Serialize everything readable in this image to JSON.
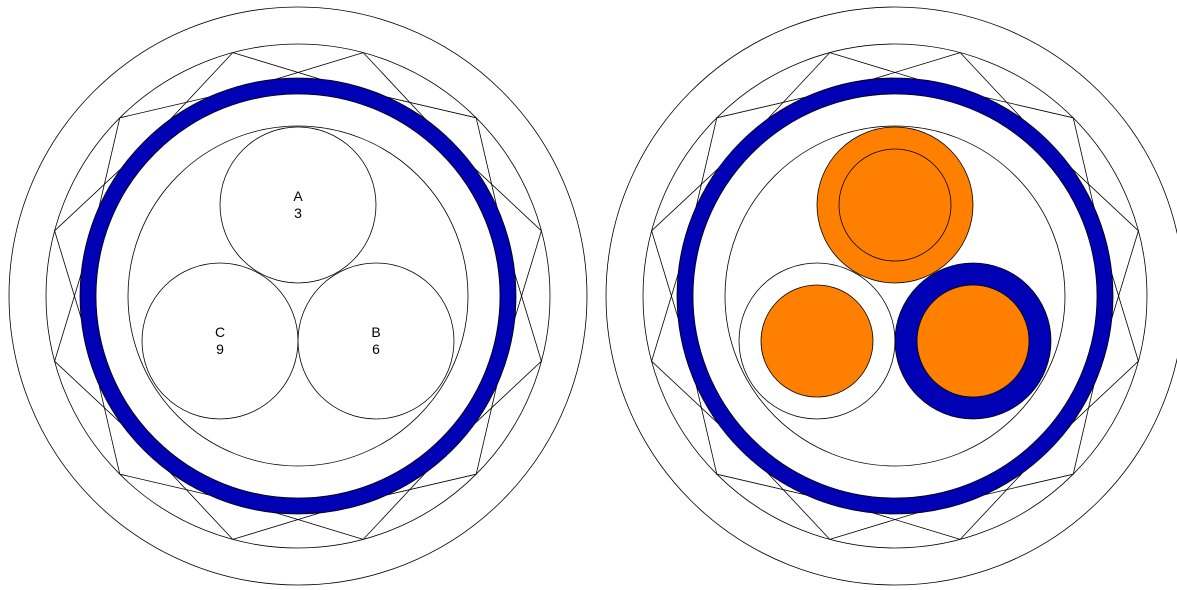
{
  "colors": {
    "background": "#ffffff",
    "outline": "#000000",
    "sheath": "#0000b4",
    "conductor": "#ff8000"
  },
  "left_diagram": {
    "cores": [
      {
        "id": "a",
        "name": "A",
        "number": "3"
      },
      {
        "id": "b",
        "name": "B",
        "number": "6"
      },
      {
        "id": "c",
        "name": "C",
        "number": "9"
      }
    ]
  },
  "right_diagram": {
    "cores": [
      {
        "id": "top",
        "conductor": true,
        "inner_ring": true,
        "sheath": false
      },
      {
        "id": "left",
        "conductor": true,
        "inner_ring": false,
        "sheath": false
      },
      {
        "id": "right",
        "conductor": true,
        "inner_ring": false,
        "sheath": true
      }
    ]
  }
}
